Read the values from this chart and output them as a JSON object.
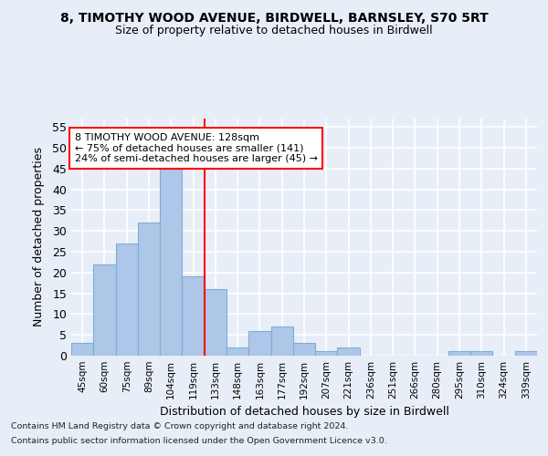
{
  "title": "8, TIMOTHY WOOD AVENUE, BIRDWELL, BARNSLEY, S70 5RT",
  "subtitle": "Size of property relative to detached houses in Birdwell",
  "xlabel": "Distribution of detached houses by size in Birdwell",
  "ylabel": "Number of detached properties",
  "categories": [
    "45sqm",
    "60sqm",
    "75sqm",
    "89sqm",
    "104sqm",
    "119sqm",
    "133sqm",
    "148sqm",
    "163sqm",
    "177sqm",
    "192sqm",
    "207sqm",
    "221sqm",
    "236sqm",
    "251sqm",
    "266sqm",
    "280sqm",
    "295sqm",
    "310sqm",
    "324sqm",
    "339sqm"
  ],
  "values": [
    3,
    22,
    27,
    32,
    46,
    19,
    16,
    2,
    6,
    7,
    3,
    1,
    2,
    0,
    0,
    0,
    0,
    1,
    1,
    0,
    1
  ],
  "bar_color": "#aec6e8",
  "bar_edgecolor": "#7aafd4",
  "vline_color": "red",
  "annotation_line1": "8 TIMOTHY WOOD AVENUE: 128sqm",
  "annotation_line2": "← 75% of detached houses are smaller (141)",
  "annotation_line3": "24% of semi-detached houses are larger (45) →",
  "annotation_box_color": "white",
  "annotation_box_edgecolor": "red",
  "ylim": [
    0,
    57
  ],
  "yticks": [
    0,
    5,
    10,
    15,
    20,
    25,
    30,
    35,
    40,
    45,
    50,
    55
  ],
  "footer1": "Contains HM Land Registry data © Crown copyright and database right 2024.",
  "footer2": "Contains public sector information licensed under the Open Government Licence v3.0.",
  "background_color": "#e8eef7",
  "grid_color": "white"
}
